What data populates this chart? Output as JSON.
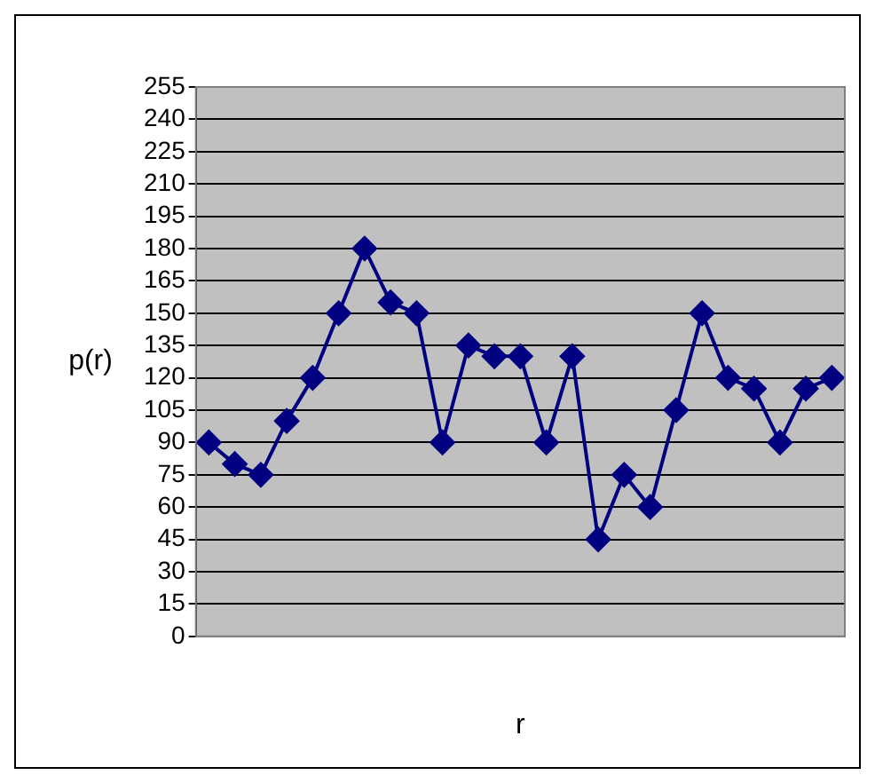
{
  "chart_data": {
    "type": "line",
    "xlabel": "r",
    "ylabel": "p(r)",
    "categories": [
      null,
      null,
      null,
      null,
      null,
      null,
      null,
      null,
      null,
      null,
      null,
      null,
      null,
      null,
      null,
      null,
      null,
      null,
      null,
      null,
      null,
      null,
      null,
      null,
      null
    ],
    "series": [
      {
        "color": "#000080",
        "values": [
          90,
          80,
          75,
          100,
          120,
          150,
          180,
          155,
          150,
          90,
          135,
          130,
          130,
          90,
          130,
          45,
          75,
          60,
          105,
          150,
          120,
          115,
          90,
          115,
          120
        ]
      }
    ],
    "ylim": [
      0,
      255
    ],
    "yticks": [
      0,
      15,
      30,
      45,
      60,
      75,
      90,
      105,
      120,
      135,
      150,
      165,
      180,
      195,
      210,
      225,
      240,
      255
    ],
    "grid": "y",
    "legend": false,
    "marker": "diamond",
    "line_style": "solid"
  }
}
